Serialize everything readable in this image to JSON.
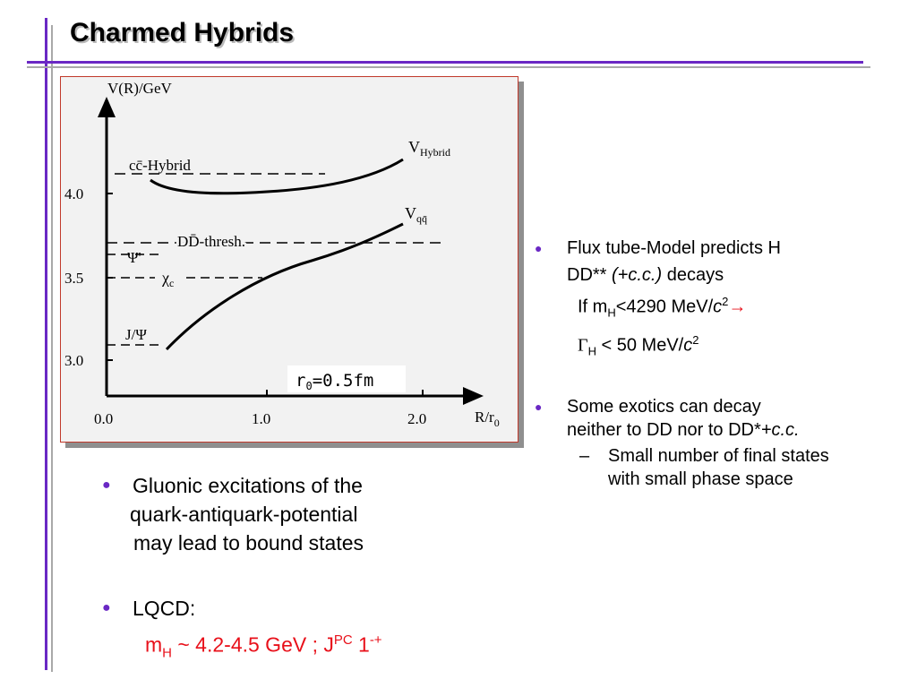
{
  "slide": {
    "title": "Charmed Hybrids"
  },
  "figure": {
    "y_axis_label": "V(R)/GeV",
    "x_axis_label_main": "R/r",
    "x_axis_label_sub": "0",
    "y_ticks": [
      "4.0",
      "3.5",
      "3.0"
    ],
    "x_ticks": [
      "0.0",
      "1.0",
      "2.0"
    ],
    "levels": {
      "hybrid": "cc̄-Hybrid",
      "dd_thresh": "DD̄-thresh.",
      "psi_prime": "Ψ'",
      "chi_c_main": "χ",
      "chi_c_sub": "c",
      "jpsi": "J/Ψ"
    },
    "curve_labels": {
      "hybrid_main": "V",
      "hybrid_sub": "Hybrid",
      "qq_main": "V",
      "qq_sub": "qq̄"
    },
    "r0_main": "r",
    "r0_sub": "0",
    "r0_value": "=0.5fm"
  },
  "left_bullets": {
    "b1_line1": "Gluonic excitations of the",
    "b1_line2": "quark-antiquark-potential",
    "b1_line3": "may lead to bound states",
    "b2_line1": "LQCD:",
    "b2_line2_a": "m",
    "b2_line2_sub": "H",
    "b2_line2_b": " ~ 4.2-4.5 GeV ; J",
    "b2_line2_sup": "PC",
    "b2_line2_c": " 1",
    "b2_line2_sup2": "-+"
  },
  "right_bullets": {
    "b1_line1": "Flux tube-Model predicts H",
    "b1_line2_a": "DD** ",
    "b1_line2_b": "(+c.c.)",
    "b1_line2_c": " decays",
    "b1_line3_a": "If m",
    "b1_line3_sub": "H",
    "b1_line3_b": "<4290 MeV/",
    "b1_line3_c": "c",
    "b1_line3_sup": "2",
    "b1_line3_arrow": "→",
    "b1_line4_a": "Γ",
    "b1_line4_sub": "H",
    "b1_line4_b": " < 50 MeV/",
    "b1_line4_c": "c",
    "b1_line4_sup": "2",
    "b2_line1": "Some exotics can decay",
    "b2_line2_a": "neither to DD nor to DD*",
    "b2_line2_b": "+c.c.",
    "sub_line1": "Small number of final states",
    "sub_line2": "with small phase space",
    "dash": "–"
  },
  "colors": {
    "accent_purple": "#6a28c4",
    "red_text": "#e8101a"
  }
}
